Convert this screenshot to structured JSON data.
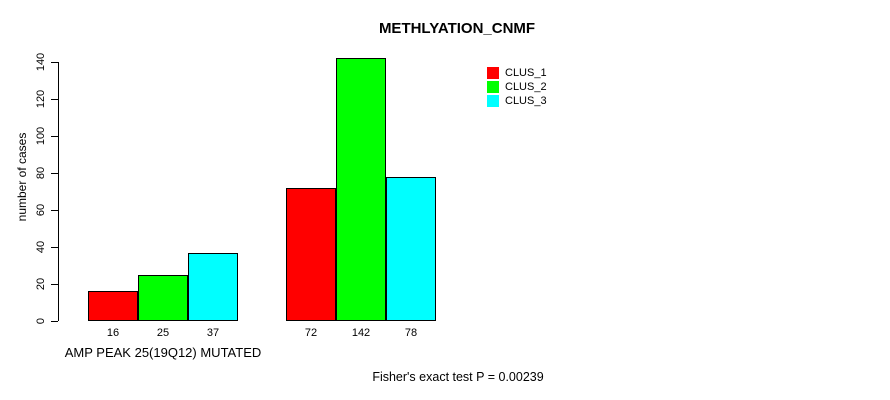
{
  "chart_data": {
    "type": "bar",
    "title": "METHLYATION_CNMF",
    "ylabel": "number of cases",
    "xlabel": "",
    "ylim": [
      0,
      140
    ],
    "yticks": [
      0,
      20,
      40,
      60,
      80,
      100,
      120,
      140
    ],
    "grid": false,
    "legend_position": "top-right-inside",
    "categories": [
      "AMP PEAK 25(19Q12) MUTATED",
      ""
    ],
    "series": [
      {
        "name": "CLUS_1",
        "color": "#ff0000",
        "values": [
          16,
          72
        ]
      },
      {
        "name": "CLUS_2",
        "color": "#00ff00",
        "values": [
          25,
          142
        ]
      },
      {
        "name": "CLUS_3",
        "color": "#00ffff",
        "values": [
          37,
          78
        ]
      }
    ],
    "bar_value_labels": [
      [
        16,
        25,
        37
      ],
      [
        72,
        142,
        78
      ]
    ],
    "annotation": "Fisher's exact test P = 0.00239"
  }
}
